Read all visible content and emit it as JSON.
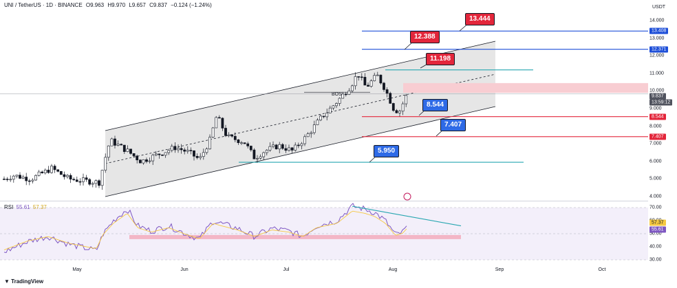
{
  "header": {
    "symbol": "UNI / TetherUS · 1D · BINANCE",
    "open": "O9.963",
    "high": "H9.970",
    "low": "L9.657",
    "close": "C9.837",
    "change": "−0.124 (−1.24%)"
  },
  "axis": {
    "unit": "USDT",
    "price_ticks": [
      "14.000",
      "13.000",
      "12.000",
      "11.000",
      "10.000",
      "9.000",
      "8.000",
      "7.000",
      "6.000",
      "5.000",
      "4.000"
    ],
    "rsi_ticks": [
      "70.00",
      "60.00",
      "50.00",
      "40.00",
      "30.00"
    ],
    "months": [
      "May",
      "Jun",
      "Jul",
      "Aug",
      "Sep",
      "Oct"
    ]
  },
  "price_badges": [
    {
      "text": "13.408",
      "color": "#1e4fd8"
    },
    {
      "text": "12.371",
      "color": "#1e4fd8"
    },
    {
      "text": "9.837",
      "color": "#50535e"
    },
    {
      "text": "13:59:12",
      "color": "#50535e"
    },
    {
      "text": "8.544",
      "color": "#e3263b"
    },
    {
      "text": "7.407",
      "color": "#e3263b"
    }
  ],
  "rsi_badges": [
    {
      "text": "57.37",
      "color": "#f5c842",
      "fg": "#131722"
    },
    {
      "text": "55.61",
      "color": "#7e57c2",
      "fg": "#ffffff"
    }
  ],
  "annotations": [
    {
      "text": "13.444",
      "color": "#e3263b"
    },
    {
      "text": "12.388",
      "color": "#e3263b"
    },
    {
      "text": "11.198",
      "color": "#e3263b"
    },
    {
      "text": "8.544",
      "color": "#2e6ae6"
    },
    {
      "text": "7.407",
      "color": "#2e6ae6"
    },
    {
      "text": "5.950",
      "color": "#2e6ae6"
    }
  ],
  "bos_label": "BOS",
  "rsi": {
    "label": "RSI",
    "value": "55.61",
    "ma": "57.37"
  },
  "footer": "TradingView",
  "colors": {
    "up": "#131722",
    "down": "#131722",
    "channel": "#e6e6e6",
    "rsi_line": "#7e57c2",
    "rsi_ma": "#f5c842",
    "rsi_band": "#f3effa",
    "ob": "#f8cdd2"
  },
  "chart_data": {
    "type": "candlestick",
    "x_labels": [
      "May",
      "Jun",
      "Jul",
      "Aug",
      "Sep",
      "Oct"
    ],
    "ylim": [
      4,
      14.6
    ],
    "levels": [
      13.408,
      12.371,
      11.198,
      8.544,
      7.407,
      5.95
    ],
    "last_close": 9.837
  }
}
